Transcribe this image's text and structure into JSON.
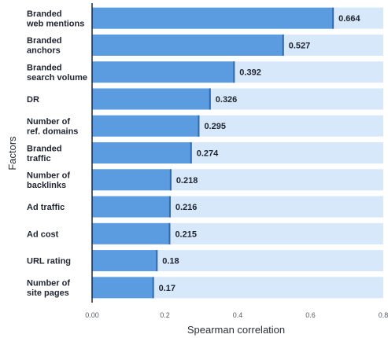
{
  "chart_data": {
    "type": "bar",
    "orientation": "horizontal",
    "categories": [
      "Branded\nweb mentions",
      "Branded\nanchors",
      "Branded\nsearch volume",
      "DR",
      "Number of\nref. domains",
      "Branded\ntraffic",
      "Number of\nbacklinks",
      "Ad traffic",
      "Ad cost",
      "URL rating",
      "Number of\nsite pages"
    ],
    "values": [
      0.664,
      0.527,
      0.392,
      0.326,
      0.295,
      0.274,
      0.218,
      0.216,
      0.215,
      0.18,
      0.17
    ],
    "value_labels": [
      "0.664",
      "0.527",
      "0.392",
      "0.326",
      "0.295",
      "0.274",
      "0.218",
      "0.216",
      "0.215",
      "0.18",
      "0.17"
    ],
    "xlabel": "Spearman correlation",
    "ylabel": "Factors",
    "xlim": [
      0,
      0.8
    ],
    "xticks": [
      0,
      0.2,
      0.4,
      0.6,
      0.8
    ],
    "xtick_labels": [
      "0.00",
      "0.2",
      "0.4",
      "0.6",
      "0.8"
    ],
    "grid": false,
    "colors": {
      "bar": "#5b9be0",
      "bar_edge": "#2f6db3",
      "track": "#d7e8fa",
      "axis": "#1f2430",
      "text": "#1f2430"
    }
  }
}
